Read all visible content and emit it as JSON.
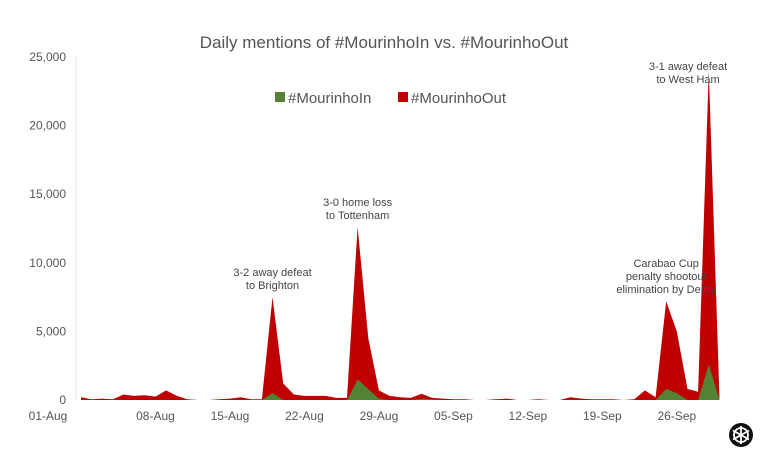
{
  "chart_data": {
    "type": "area",
    "title": "Daily mentions of #MourinhoIn vs. #MourinhoOut",
    "xlabel": "",
    "ylabel": "",
    "ylim": [
      0,
      25000
    ],
    "yticks": [
      0,
      5000,
      10000,
      15000,
      20000,
      25000
    ],
    "ytick_labels": [
      "0",
      "5,000",
      "10,000",
      "15,000",
      "20,000",
      "25,000"
    ],
    "xtick_labels": [
      "01-Aug",
      "08-Aug",
      "15-Aug",
      "22-Aug",
      "29-Aug",
      "05-Sep",
      "12-Sep",
      "19-Sep",
      "26-Sep"
    ],
    "xtick_days": [
      0,
      7,
      14,
      21,
      28,
      35,
      42,
      49,
      56
    ],
    "x_start": "01-Aug",
    "x_days": 61,
    "grid": false,
    "legend_position": "top-center",
    "series": [
      {
        "name": "#MourinhoOut",
        "color": "#c00000",
        "values": [
          200,
          50,
          100,
          50,
          400,
          300,
          350,
          250,
          700,
          300,
          50,
          0,
          0,
          50,
          100,
          200,
          50,
          50,
          7500,
          1200,
          400,
          300,
          300,
          300,
          150,
          150,
          12600,
          4500,
          700,
          300,
          200,
          150,
          450,
          150,
          100,
          50,
          50,
          0,
          0,
          50,
          100,
          0,
          0,
          50,
          0,
          0,
          200,
          100,
          50,
          50,
          50,
          0,
          50,
          700,
          200,
          7200,
          5000,
          800,
          600,
          24000,
          300
        ]
      },
      {
        "name": "#MourinhoIn",
        "color": "#538135",
        "values": [
          0,
          0,
          0,
          0,
          0,
          0,
          0,
          0,
          0,
          0,
          0,
          0,
          0,
          0,
          0,
          0,
          0,
          0,
          500,
          0,
          0,
          0,
          0,
          0,
          0,
          0,
          1500,
          800,
          100,
          0,
          0,
          0,
          100,
          50,
          0,
          0,
          0,
          0,
          0,
          0,
          0,
          0,
          0,
          0,
          0,
          0,
          0,
          0,
          0,
          0,
          0,
          0,
          0,
          0,
          0,
          800,
          500,
          0,
          0,
          2600,
          0
        ]
      }
    ],
    "annotations": [
      {
        "day": 18,
        "lines": [
          "3-2 away defeat",
          "to Brighton"
        ]
      },
      {
        "day": 26,
        "lines": [
          "3-0 home loss",
          "to Tottenham"
        ]
      },
      {
        "day": 55,
        "lines": [
          "Carabao Cup",
          "penalty shootout",
          "elimination by Derby"
        ]
      },
      {
        "day": 59,
        "lines": [
          "3-1 away defeat",
          "to West Ham"
        ]
      }
    ]
  }
}
